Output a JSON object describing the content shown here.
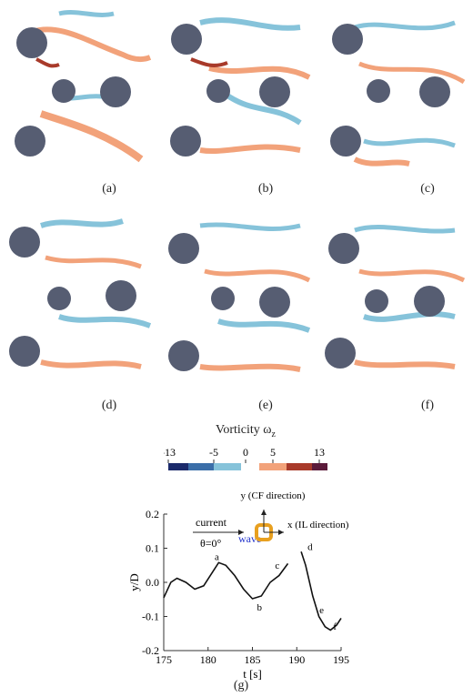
{
  "panels": [
    {
      "label": "(a)"
    },
    {
      "label": "(b)"
    },
    {
      "label": "(c)"
    },
    {
      "label": "(d)"
    },
    {
      "label": "(e)"
    },
    {
      "label": "(f)"
    }
  ],
  "colorbar": {
    "title": "Vorticity ω",
    "title_sub": "z",
    "ticks": [
      "-13",
      "-5",
      "0",
      "5",
      "13"
    ],
    "colors": [
      "#1b2a6b",
      "#3b6ea8",
      "#86c3da",
      "#f2a27a",
      "#a83a2a",
      "#5b1a3a"
    ]
  },
  "chart_data": {
    "type": "line",
    "xlabel": "t [s]",
    "ylabel": "y/D",
    "xlim": [
      175,
      195
    ],
    "ylim": [
      -0.2,
      0.2
    ],
    "xticks": [
      "175",
      "180",
      "185",
      "190",
      "195"
    ],
    "yticks": [
      "-0.2",
      "-0.1",
      "0.0",
      "0.1",
      "0.2"
    ],
    "series": [
      {
        "values_x": [
          175,
          175.8,
          176.5,
          177.5,
          178.5,
          179.5,
          180.5,
          181.2,
          182,
          183,
          184,
          185,
          186,
          187,
          188,
          189
        ],
        "values_y": [
          -0.045,
          0.0,
          0.012,
          0.0,
          -0.02,
          -0.01,
          0.03,
          0.058,
          0.05,
          0.02,
          -0.02,
          -0.048,
          -0.04,
          0.0,
          0.02,
          0.055
        ]
      },
      {
        "values_x": [
          190.5,
          191,
          191.8,
          192.5,
          193.2,
          193.8,
          194.5,
          195
        ],
        "values_y": [
          0.09,
          0.05,
          -0.04,
          -0.1,
          -0.13,
          -0.14,
          -0.125,
          -0.105
        ]
      }
    ],
    "annotations": [
      {
        "text": "a",
        "x": 181.0,
        "y": 0.065
      },
      {
        "text": "b",
        "x": 185.8,
        "y": -0.082
      },
      {
        "text": "c",
        "x": 187.8,
        "y": 0.04
      },
      {
        "text": "d",
        "x": 191.5,
        "y": 0.095
      },
      {
        "text": "e",
        "x": 192.8,
        "y": -0.09
      },
      {
        "text": "f",
        "x": 194.3,
        "y": -0.138
      }
    ],
    "inset": {
      "current": "current",
      "wave": "wave",
      "angle": "θ=0°",
      "y_axis": "y (CF direction)",
      "x_axis": "x (IL direction)"
    }
  },
  "caption_g": "(g)"
}
